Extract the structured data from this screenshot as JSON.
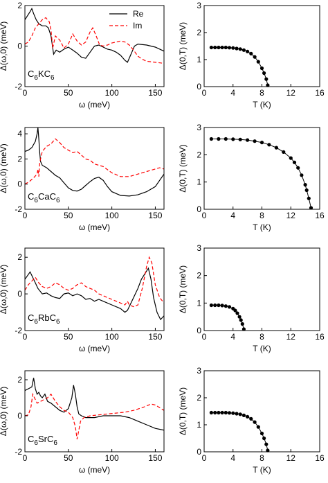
{
  "chart_data": [
    {
      "type": "line",
      "material": {
        "main": "C",
        "sub1": "6",
        "mid": "K",
        "tail": "C",
        "sub2": "6"
      },
      "xlabel": "ω (meV)",
      "ylabel": "Δ(ω,0) (meV)",
      "xlim": [
        0,
        160
      ],
      "ylim": [
        -2,
        2
      ],
      "xticks": [
        0,
        50,
        100,
        150
      ],
      "yticks": [
        -2,
        0,
        2
      ],
      "legend": [
        {
          "label": "Re",
          "color": "#000000",
          "dash": "solid"
        },
        {
          "label": "Im",
          "color": "#ff0000",
          "dash": "dashed"
        }
      ],
      "legend_position": "top-right",
      "series": [
        {
          "name": "Re",
          "color": "#000000",
          "dash": "solid",
          "x": [
            0,
            3,
            6,
            8,
            10,
            13,
            16,
            20,
            24,
            27,
            30,
            33,
            36,
            40,
            45,
            50,
            55,
            60,
            65,
            70,
            75,
            80,
            85,
            90,
            95,
            100,
            105,
            110,
            115,
            118,
            122,
            126,
            130,
            140,
            150,
            160
          ],
          "y": [
            1.3,
            1.5,
            1.7,
            1.85,
            1.6,
            1.3,
            1.1,
            1.0,
            1.0,
            0.9,
            0.5,
            -0.4,
            -0.2,
            -0.3,
            -0.15,
            -0.05,
            -0.2,
            -0.35,
            -0.55,
            -0.6,
            -0.3,
            0.0,
            0.05,
            -0.05,
            -0.15,
            -0.2,
            -0.3,
            -0.45,
            -0.7,
            -0.8,
            -0.4,
            0.0,
            0.1,
            0.05,
            -0.05,
            -0.25
          ]
        },
        {
          "name": "Im",
          "color": "#ff0000",
          "dash": "dashed",
          "x": [
            0,
            4,
            8,
            12,
            16,
            20,
            24,
            28,
            30,
            32,
            35,
            40,
            45,
            50,
            55,
            60,
            65,
            70,
            75,
            78,
            82,
            86,
            90,
            95,
            100,
            105,
            110,
            115,
            120,
            125,
            130,
            135,
            140,
            150,
            160
          ],
          "y": [
            0.1,
            0.2,
            0.5,
            0.9,
            1.1,
            1.3,
            1.4,
            1.2,
            0.8,
            -0.1,
            0.5,
            0.3,
            -0.1,
            0.1,
            0.6,
            0.25,
            0.05,
            0.2,
            0.7,
            0.9,
            0.5,
            0.05,
            0.0,
            0.05,
            0.15,
            0.2,
            0.25,
            0.2,
            0.05,
            -0.2,
            -0.5,
            -0.65,
            -0.75,
            -0.8,
            -0.85
          ]
        }
      ]
    },
    {
      "type": "scatter",
      "xlabel": "T (K)",
      "ylabel": "Δ(0,T) (meV)",
      "xlim": [
        0,
        16
      ],
      "ylim": [
        0,
        3
      ],
      "xticks": [
        0,
        4,
        8,
        12,
        16
      ],
      "yticks": [
        0,
        1,
        2,
        3
      ],
      "series": [
        {
          "name": "",
          "color": "#000000",
          "x": [
            1,
            1.5,
            2,
            2.5,
            3,
            3.5,
            4,
            4.5,
            5,
            5.5,
            6,
            6.5,
            7,
            7.5,
            8,
            8.3,
            8.6,
            8.8
          ],
          "y": [
            1.45,
            1.45,
            1.45,
            1.45,
            1.45,
            1.44,
            1.43,
            1.41,
            1.39,
            1.35,
            1.3,
            1.22,
            1.1,
            0.92,
            0.68,
            0.5,
            0.28,
            0.05
          ]
        }
      ]
    },
    {
      "type": "line",
      "material": {
        "main": "C",
        "sub1": "6",
        "mid": "Ca",
        "tail": "C",
        "sub2": "6"
      },
      "xlabel": "ω (meV)",
      "ylabel": "Δ(ω,0) (meV)",
      "xlim": [
        0,
        160
      ],
      "ylim": [
        -2,
        4.5
      ],
      "xticks": [
        0,
        50,
        100,
        150
      ],
      "yticks": [
        -2,
        0,
        2,
        4
      ],
      "series": [
        {
          "name": "Re",
          "color": "#000000",
          "dash": "solid",
          "x": [
            0,
            4,
            8,
            12,
            14,
            15,
            16,
            17,
            18,
            20,
            25,
            30,
            35,
            40,
            45,
            50,
            55,
            60,
            65,
            70,
            75,
            80,
            85,
            90,
            95,
            100,
            110,
            120,
            130,
            140,
            150,
            160
          ],
          "y": [
            2.6,
            2.7,
            2.9,
            3.4,
            4.0,
            4.5,
            3.6,
            2.5,
            1.8,
            1.5,
            1.3,
            1.0,
            0.7,
            0.5,
            0.1,
            -0.3,
            -0.5,
            -0.55,
            -0.4,
            -0.1,
            0.2,
            0.45,
            0.55,
            0.3,
            -0.2,
            -0.6,
            -0.9,
            -0.95,
            -0.85,
            -0.6,
            -0.2,
            0.8
          ]
        },
        {
          "name": "Im",
          "color": "#ff0000",
          "dash": "dashed",
          "x": [
            0,
            5,
            10,
            14,
            15,
            16,
            17,
            20,
            25,
            30,
            35,
            40,
            45,
            50,
            55,
            60,
            65,
            70,
            75,
            80,
            90,
            100,
            110,
            120,
            130,
            140,
            150,
            155,
            160
          ],
          "y": [
            0.0,
            0.2,
            0.5,
            0.8,
            1.2,
            0.6,
            1.7,
            2.6,
            3.0,
            3.2,
            3.6,
            3.3,
            2.9,
            2.7,
            2.5,
            2.6,
            2.3,
            2.0,
            1.9,
            1.6,
            1.4,
            0.9,
            0.6,
            0.6,
            0.8,
            1.0,
            1.2,
            1.3,
            1.2
          ]
        }
      ]
    },
    {
      "type": "scatter",
      "xlabel": "T (K)",
      "ylabel": "Δ(0,T) (meV)",
      "xlim": [
        0,
        16
      ],
      "ylim": [
        0,
        3
      ],
      "xticks": [
        0,
        4,
        8,
        12,
        16
      ],
      "yticks": [
        0,
        1,
        2,
        3
      ],
      "series": [
        {
          "name": "",
          "color": "#000000",
          "x": [
            1,
            2,
            3,
            4,
            5,
            6,
            7,
            8,
            9,
            10,
            11,
            12,
            12.5,
            13,
            13.5,
            14,
            14.2,
            14.5,
            14.8
          ],
          "y": [
            2.58,
            2.58,
            2.58,
            2.57,
            2.56,
            2.54,
            2.5,
            2.45,
            2.37,
            2.26,
            2.1,
            1.88,
            1.72,
            1.52,
            1.25,
            0.9,
            0.7,
            0.4,
            0.05
          ]
        }
      ]
    },
    {
      "type": "line",
      "material": {
        "main": "C",
        "sub1": "6",
        "mid": "Rb",
        "tail": "C",
        "sub2": "6"
      },
      "xlabel": "ω (meV)",
      "ylabel": "Δ(ω,0) (meV)",
      "xlim": [
        0,
        160
      ],
      "ylim": [
        -2,
        2.5
      ],
      "xticks": [
        0,
        50,
        100,
        150
      ],
      "yticks": [
        -2,
        0,
        2
      ],
      "series": [
        {
          "name": "Re",
          "color": "#000000",
          "dash": "solid",
          "x": [
            0,
            3,
            6,
            9,
            12,
            15,
            20,
            25,
            30,
            35,
            40,
            45,
            50,
            55,
            60,
            65,
            70,
            75,
            80,
            85,
            90,
            100,
            110,
            115,
            118,
            122,
            126,
            130,
            134,
            138,
            142,
            145,
            148,
            152,
            156,
            160
          ],
          "y": [
            0.8,
            1.0,
            1.2,
            0.9,
            0.6,
            0.3,
            0.0,
            0.05,
            -0.1,
            -0.2,
            -0.25,
            0.0,
            0.05,
            -0.1,
            0.0,
            -0.1,
            -0.3,
            -0.25,
            -0.4,
            -0.3,
            -0.4,
            -0.6,
            -0.8,
            -1.0,
            -0.9,
            -0.5,
            -0.1,
            0.3,
            0.8,
            1.1,
            1.4,
            0.8,
            -0.2,
            -1.0,
            -1.4,
            -1.2
          ]
        },
        {
          "name": "Im",
          "color": "#ff0000",
          "dash": "dashed",
          "x": [
            0,
            4,
            8,
            12,
            16,
            20,
            25,
            30,
            35,
            40,
            45,
            50,
            55,
            60,
            65,
            70,
            75,
            80,
            85,
            90,
            100,
            110,
            115,
            118,
            120,
            125,
            130,
            135,
            140,
            143,
            146,
            150,
            155,
            160
          ],
          "y": [
            0.2,
            0.5,
            0.7,
            0.9,
            0.6,
            0.4,
            0.3,
            0.4,
            0.6,
            0.5,
            0.3,
            0.2,
            0.3,
            0.5,
            0.6,
            0.4,
            0.3,
            0.2,
            0.0,
            -0.1,
            -0.3,
            -0.5,
            -0.6,
            -0.4,
            -0.6,
            -0.7,
            -0.6,
            0.3,
            1.5,
            2.0,
            1.7,
            0.5,
            -0.2,
            -0.5
          ]
        }
      ]
    },
    {
      "type": "scatter",
      "xlabel": "T (K)",
      "ylabel": "Δ(0,T) (meV)",
      "xlim": [
        0,
        16
      ],
      "ylim": [
        0,
        3
      ],
      "xticks": [
        0,
        4,
        8,
        12,
        16
      ],
      "yticks": [
        0,
        1,
        2,
        3
      ],
      "series": [
        {
          "name": "",
          "color": "#000000",
          "x": [
            1,
            1.5,
            2,
            2.5,
            3,
            3.5,
            4,
            4.3,
            4.6,
            4.9,
            5.1,
            5.3,
            5.5
          ],
          "y": [
            0.92,
            0.92,
            0.92,
            0.91,
            0.89,
            0.86,
            0.8,
            0.73,
            0.63,
            0.5,
            0.38,
            0.24,
            0.05
          ]
        }
      ]
    },
    {
      "type": "line",
      "material": {
        "main": "C",
        "sub1": "6",
        "mid": "Sr",
        "tail": "C",
        "sub2": "6"
      },
      "xlabel": "ω (meV)",
      "ylabel": "Δ(ω,0) (meV)",
      "xlim": [
        0,
        160
      ],
      "ylim": [
        -2,
        2.5
      ],
      "xticks": [
        0,
        50,
        100,
        150
      ],
      "yticks": [
        -2,
        0,
        2
      ],
      "series": [
        {
          "name": "Re",
          "color": "#000000",
          "dash": "solid",
          "x": [
            0,
            4,
            8,
            10,
            12,
            14,
            16,
            18,
            20,
            23,
            26,
            30,
            35,
            40,
            45,
            50,
            54,
            56,
            58,
            60,
            62,
            65,
            70,
            80,
            90,
            100,
            110,
            120,
            130,
            140,
            150,
            160
          ],
          "y": [
            1.4,
            1.5,
            1.6,
            2.1,
            1.5,
            1.2,
            1.3,
            1.1,
            1.0,
            1.2,
            0.8,
            0.7,
            0.5,
            0.3,
            0.2,
            0.4,
            1.0,
            1.7,
            1.2,
            0.5,
            0.1,
            0.0,
            -0.1,
            -0.1,
            0.0,
            0.0,
            0.0,
            -0.1,
            -0.3,
            -0.5,
            -0.7,
            -0.8
          ]
        },
        {
          "name": "Im",
          "color": "#ff0000",
          "dash": "dashed",
          "x": [
            0,
            4,
            7,
            9,
            11,
            14,
            18,
            22,
            26,
            30,
            35,
            40,
            45,
            50,
            55,
            58,
            60,
            62,
            64,
            68,
            75,
            85,
            95,
            105,
            115,
            125,
            135,
            145,
            150,
            155,
            160
          ],
          "y": [
            0.0,
            0.05,
            0.5,
            1.2,
            1.0,
            0.7,
            0.8,
            0.9,
            1.0,
            1.2,
            0.8,
            0.5,
            0.3,
            0.2,
            -0.1,
            -0.6,
            -1.3,
            -0.8,
            -0.3,
            -0.1,
            0.0,
            0.05,
            0.1,
            0.15,
            0.2,
            0.3,
            0.45,
            0.65,
            0.6,
            0.45,
            0.3
          ]
        }
      ]
    },
    {
      "type": "scatter",
      "xlabel": "T (K)",
      "ylabel": "Δ(0,T) (meV)",
      "xlim": [
        0,
        16
      ],
      "ylim": [
        0,
        3
      ],
      "xticks": [
        0,
        4,
        8,
        12,
        16
      ],
      "yticks": [
        0,
        1,
        2,
        3
      ],
      "series": [
        {
          "name": "",
          "color": "#000000",
          "x": [
            1,
            1.5,
            2,
            2.5,
            3,
            3.5,
            4,
            4.5,
            5,
            5.5,
            6,
            6.5,
            7,
            7.5,
            8,
            8.3,
            8.6,
            8.8
          ],
          "y": [
            1.45,
            1.45,
            1.45,
            1.45,
            1.45,
            1.44,
            1.43,
            1.41,
            1.39,
            1.35,
            1.3,
            1.22,
            1.1,
            0.92,
            0.68,
            0.5,
            0.28,
            0.05
          ]
        }
      ]
    }
  ]
}
